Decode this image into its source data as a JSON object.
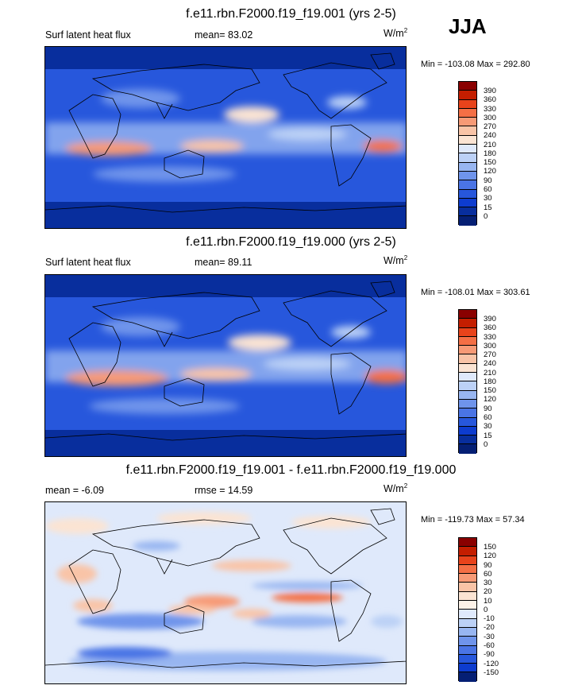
{
  "season": "JJA",
  "units_base": "W/m",
  "units_exp": "2",
  "panels": [
    {
      "title": "f.e11.rbn.F2000.f19_f19.001 (yrs 2-5)",
      "left_label": "Surf latent heat flux",
      "mean_label": "mean=  83.02",
      "minmax": "Min = -103.08 Max = 292.80",
      "levels": [
        "390",
        "360",
        "330",
        "300",
        "270",
        "240",
        "210",
        "180",
        "150",
        "120",
        "90",
        "60",
        "30",
        "15",
        "0"
      ],
      "colors": [
        "#8a0000",
        "#c41e00",
        "#e8431b",
        "#f46f45",
        "#f79a76",
        "#f9c4a7",
        "#fbe4d3",
        "#dfe9fb",
        "#bcd1f6",
        "#98b6f1",
        "#6f94eb",
        "#4a74e5",
        "#2757dc",
        "#0d3ccf",
        "#082e9d",
        "#051f74"
      ]
    },
    {
      "title": "f.e11.rbn.F2000.f19_f19.000 (yrs 2-5)",
      "left_label": "Surf latent heat flux",
      "mean_label": "mean=  89.11",
      "minmax": "Min = -108.01 Max = 303.61",
      "levels": [
        "390",
        "360",
        "330",
        "300",
        "270",
        "240",
        "210",
        "180",
        "150",
        "120",
        "90",
        "60",
        "30",
        "15",
        "0"
      ],
      "colors": [
        "#8a0000",
        "#c41e00",
        "#e8431b",
        "#f46f45",
        "#f79a76",
        "#f9c4a7",
        "#fbe4d3",
        "#dfe9fb",
        "#bcd1f6",
        "#98b6f1",
        "#6f94eb",
        "#4a74e5",
        "#2757dc",
        "#0d3ccf",
        "#082e9d",
        "#051f74"
      ]
    },
    {
      "title": "f.e11.rbn.F2000.f19_f19.001 - f.e11.rbn.F2000.f19_f19.000",
      "left_label": "mean =  -6.09",
      "mean_label": "rmse =  14.59",
      "minmax": "Min = -119.73 Max =  57.34",
      "levels": [
        "150",
        "120",
        "90",
        "60",
        "30",
        "20",
        "10",
        "0",
        "-10",
        "-20",
        "-30",
        "-60",
        "-90",
        "-120",
        "-150"
      ],
      "colors": [
        "#8a0000",
        "#c41e00",
        "#e8431b",
        "#f46f45",
        "#f79a76",
        "#f9c4a7",
        "#fbe4d3",
        "#fdf2e8",
        "#dfe9fb",
        "#bcd1f6",
        "#98b6f1",
        "#6f94eb",
        "#4a74e5",
        "#2757dc",
        "#0d3ccf",
        "#051f74"
      ]
    }
  ]
}
